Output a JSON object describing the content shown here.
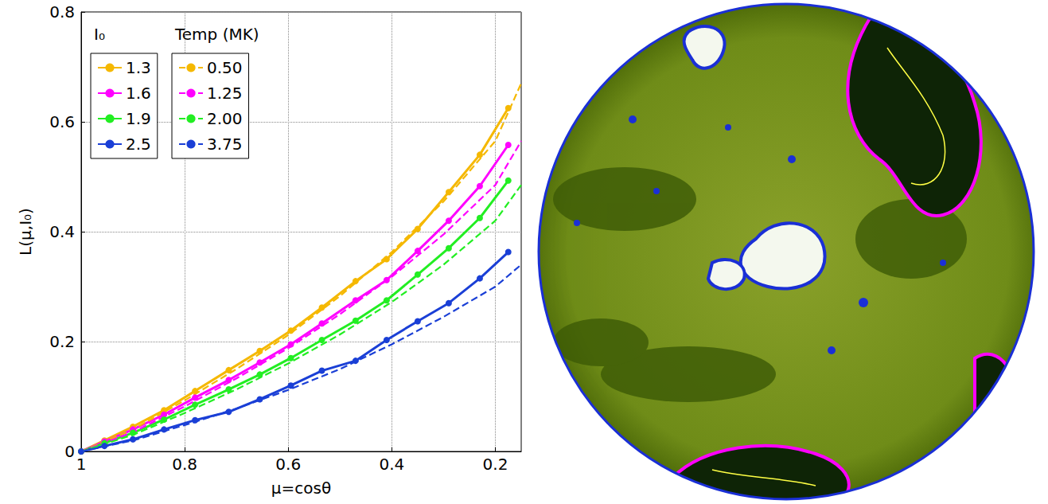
{
  "chart_data": {
    "type": "line",
    "x_label": "μ=cosθ",
    "y_label": "L(μ,I₀)",
    "xlim": [
      1,
      0.15
    ],
    "xticks": [
      1,
      0.8,
      0.6,
      0.4,
      0.2
    ],
    "ylim": [
      0,
      0.8
    ],
    "yticks": [
      0,
      0.2,
      0.4,
      0.6,
      0.8
    ],
    "grid": true,
    "legend": "upper left",
    "series": [
      {
        "name": "1.3",
        "legend_title": "I₀",
        "color": "#f5b800",
        "line_style": "solid",
        "marker": "circle",
        "x": [
          1,
          0.955,
          0.9,
          0.84,
          0.78,
          0.715,
          0.655,
          0.595,
          0.535,
          0.47,
          0.41,
          0.35,
          0.29,
          0.23,
          0.175
        ],
        "values": [
          0,
          0.02,
          0.045,
          0.075,
          0.11,
          0.148,
          0.183,
          0.22,
          0.262,
          0.31,
          0.35,
          0.405,
          0.472,
          0.54,
          0.625
        ]
      },
      {
        "name": "1.6",
        "legend_title": "I₀",
        "color": "#ff00ff",
        "line_style": "solid",
        "marker": "circle",
        "x": [
          1,
          0.955,
          0.9,
          0.84,
          0.78,
          0.715,
          0.655,
          0.595,
          0.535,
          0.47,
          0.41,
          0.35,
          0.29,
          0.23,
          0.175
        ],
        "values": [
          0,
          0.018,
          0.04,
          0.067,
          0.098,
          0.13,
          0.162,
          0.195,
          0.233,
          0.275,
          0.312,
          0.365,
          0.42,
          0.483,
          0.558
        ]
      },
      {
        "name": "1.9",
        "legend_title": "I₀",
        "color": "#22ee22",
        "line_style": "solid",
        "marker": "circle",
        "x": [
          1,
          0.955,
          0.9,
          0.84,
          0.78,
          0.715,
          0.655,
          0.595,
          0.535,
          0.47,
          0.41,
          0.35,
          0.29,
          0.23,
          0.175
        ],
        "values": [
          0,
          0.015,
          0.034,
          0.058,
          0.085,
          0.113,
          0.14,
          0.17,
          0.203,
          0.238,
          0.275,
          0.322,
          0.37,
          0.425,
          0.493
        ]
      },
      {
        "name": "2.5",
        "legend_title": "I₀",
        "color": "#1a3fd6",
        "line_style": "solid",
        "marker": "circle",
        "x": [
          1,
          0.955,
          0.9,
          0.84,
          0.78,
          0.715,
          0.655,
          0.595,
          0.535,
          0.47,
          0.41,
          0.35,
          0.29,
          0.23,
          0.175
        ],
        "values": [
          0,
          0.01,
          0.022,
          0.04,
          0.057,
          0.072,
          0.095,
          0.12,
          0.147,
          0.165,
          0.203,
          0.237,
          0.27,
          0.315,
          0.363
        ]
      },
      {
        "name": "0.50",
        "legend_title": "Temp (MK)",
        "color": "#f5b800",
        "line_style": "dashed",
        "marker": "none",
        "x": [
          1,
          0.9,
          0.8,
          0.7,
          0.6,
          0.5,
          0.4,
          0.3,
          0.2,
          0.15
        ],
        "values": [
          0,
          0.04,
          0.093,
          0.15,
          0.212,
          0.283,
          0.363,
          0.455,
          0.565,
          0.67
        ]
      },
      {
        "name": "1.25",
        "legend_title": "Temp (MK)",
        "color": "#ff00ff",
        "line_style": "dashed",
        "marker": "none",
        "x": [
          1,
          0.9,
          0.8,
          0.7,
          0.6,
          0.5,
          0.4,
          0.3,
          0.2,
          0.15
        ],
        "values": [
          0,
          0.035,
          0.082,
          0.133,
          0.188,
          0.25,
          0.318,
          0.395,
          0.485,
          0.565
        ]
      },
      {
        "name": "2.00",
        "legend_title": "Temp (MK)",
        "color": "#22ee22",
        "line_style": "dashed",
        "marker": "none",
        "x": [
          1,
          0.9,
          0.8,
          0.7,
          0.6,
          0.5,
          0.4,
          0.3,
          0.2,
          0.15
        ],
        "values": [
          0,
          0.03,
          0.07,
          0.113,
          0.16,
          0.213,
          0.272,
          0.34,
          0.42,
          0.485
        ]
      },
      {
        "name": "3.75",
        "legend_title": "Temp (MK)",
        "color": "#1a3fd6",
        "line_style": "dashed",
        "marker": "none",
        "x": [
          1,
          0.9,
          0.8,
          0.7,
          0.6,
          0.5,
          0.4,
          0.3,
          0.2,
          0.15
        ],
        "values": [
          0,
          0.02,
          0.048,
          0.078,
          0.112,
          0.15,
          0.195,
          0.245,
          0.3,
          0.34
        ]
      }
    ]
  }
}
